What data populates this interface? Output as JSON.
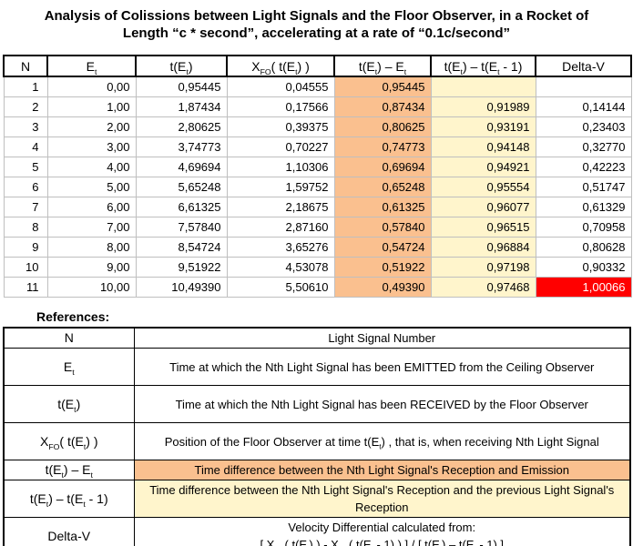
{
  "title": "Analysis of Colissions between Light Signals and the Floor Observer, in a Rocket of Length “c * second”, accelerating at a rate of “0.1c/second”",
  "colors": {
    "orange": "#FAC08F",
    "yellow": "#FFF5CC",
    "red": "#FF0000"
  },
  "main_table": {
    "headers": [
      "N",
      "E_{t}",
      "t(E_{t})",
      "X_{FO}( t(E_{t}) )",
      "t(E_{t}) – E_{t}",
      "t(E_{t}) – t(E_{t} - 1)",
      "Delta-V"
    ],
    "highlight_columns": {
      "4": "orange",
      "5": "yellow"
    },
    "red_cell": {
      "row": 10,
      "col": 6
    },
    "rows": [
      [
        "1",
        "0,00",
        "0,95445",
        "0,04555",
        "0,95445",
        "",
        ""
      ],
      [
        "2",
        "1,00",
        "1,87434",
        "0,17566",
        "0,87434",
        "0,91989",
        "0,14144"
      ],
      [
        "3",
        "2,00",
        "2,80625",
        "0,39375",
        "0,80625",
        "0,93191",
        "0,23403"
      ],
      [
        "4",
        "3,00",
        "3,74773",
        "0,70227",
        "0,74773",
        "0,94148",
        "0,32770"
      ],
      [
        "5",
        "4,00",
        "4,69694",
        "1,10306",
        "0,69694",
        "0,94921",
        "0,42223"
      ],
      [
        "6",
        "5,00",
        "5,65248",
        "1,59752",
        "0,65248",
        "0,95554",
        "0,51747"
      ],
      [
        "7",
        "6,00",
        "6,61325",
        "2,18675",
        "0,61325",
        "0,96077",
        "0,61329"
      ],
      [
        "8",
        "7,00",
        "7,57840",
        "2,87160",
        "0,57840",
        "0,96515",
        "0,70958"
      ],
      [
        "9",
        "8,00",
        "8,54724",
        "3,65276",
        "0,54724",
        "0,96884",
        "0,80628"
      ],
      [
        "10",
        "9,00",
        "9,51922",
        "4,53078",
        "0,51922",
        "0,97198",
        "0,90332"
      ],
      [
        "11",
        "10,00",
        "10,49390",
        "5,50610",
        "0,49390",
        "0,97468",
        "1,00066"
      ]
    ]
  },
  "references": {
    "label": "References:",
    "rows": [
      {
        "term": "N",
        "definition": [
          "Light Signal Number"
        ],
        "highlight": "none",
        "lines": "single"
      },
      {
        "term": "E_{t}",
        "definition": [
          "Time at which the Nth Light Signal has been EMITTED from the Ceiling Observer"
        ],
        "highlight": "none",
        "lines": "double"
      },
      {
        "term": "t(E_{t})",
        "definition": [
          "Time at which the Nth Light Signal has been RECEIVED by the Floor Observer"
        ],
        "highlight": "none",
        "lines": "double"
      },
      {
        "term": "X_{FO}( t(E_{t}) )",
        "definition": [
          "Position of the Floor Observer at time t(E_{t}) , that is, when receiving Nth Light Signal"
        ],
        "highlight": "none",
        "lines": "double"
      },
      {
        "term": "t(E_{t}) – E_{t}",
        "definition": [
          "Time difference between the Nth Light Signal's Reception and Emission"
        ],
        "highlight": "orange",
        "lines": "single"
      },
      {
        "term": "t(E_{t}) – t(E_{t} - 1)",
        "definition": [
          "Time difference between the Nth Light Signal's Reception and the previous Light Signal's Reception"
        ],
        "highlight": "yellow",
        "lines": "double"
      },
      {
        "term": "Delta-V",
        "definition": [
          "Velocity Differential calculated from:",
          "[ X_{FO}( t(E_{t}) ) - X_{FO}( t(E_{t} - 1) ) ] / [ t(E_{t}) – t(E_{t} - 1) ]"
        ],
        "highlight": "none",
        "lines": "double"
      }
    ]
  }
}
